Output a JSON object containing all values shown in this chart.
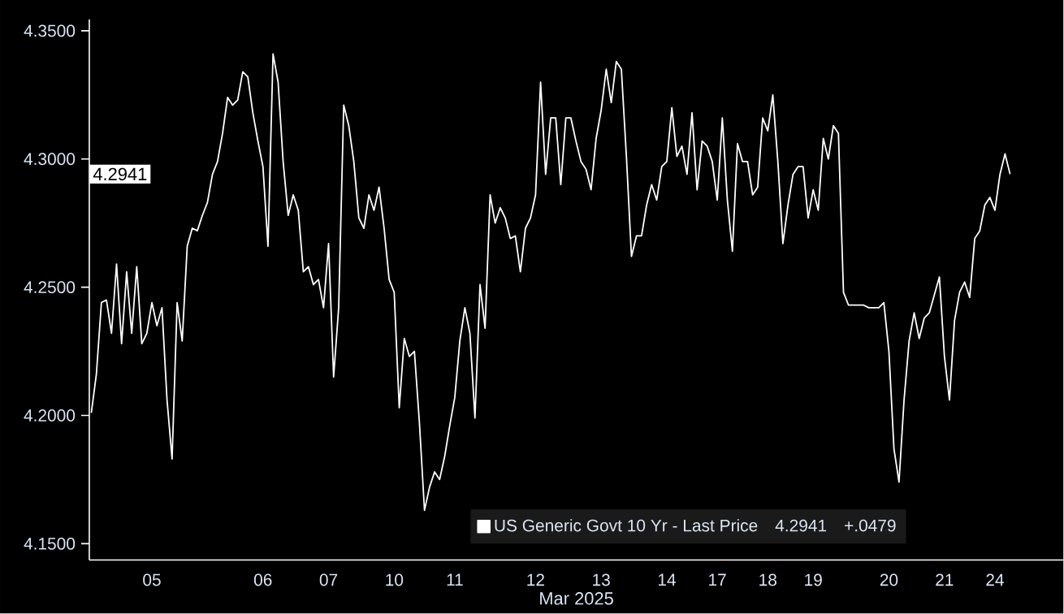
{
  "chart_data": {
    "type": "line",
    "xlabel": "Mar 2025",
    "categories": [
      null,
      null,
      null,
      null,
      null,
      null,
      null,
      null,
      null,
      null,
      null,
      null,
      "05",
      null,
      null,
      null,
      null,
      null,
      null,
      null,
      null,
      null,
      null,
      null,
      null,
      null,
      null,
      null,
      null,
      null,
      null,
      null,
      null,
      null,
      "06",
      null,
      null,
      null,
      null,
      null,
      null,
      null,
      null,
      null,
      null,
      null,
      null,
      "07",
      null,
      null,
      null,
      null,
      null,
      null,
      null,
      null,
      null,
      null,
      null,
      null,
      "10",
      null,
      null,
      null,
      null,
      null,
      null,
      null,
      null,
      null,
      null,
      null,
      "11",
      null,
      null,
      null,
      null,
      null,
      null,
      null,
      null,
      null,
      null,
      null,
      null,
      null,
      null,
      null,
      "12",
      null,
      null,
      null,
      null,
      null,
      null,
      null,
      null,
      null,
      null,
      null,
      null,
      "13",
      null,
      null,
      null,
      null,
      null,
      null,
      null,
      null,
      null,
      null,
      null,
      null,
      "14",
      null,
      null,
      null,
      null,
      null,
      null,
      null,
      null,
      null,
      "17",
      null,
      null,
      null,
      null,
      null,
      null,
      null,
      null,
      null,
      "18",
      null,
      null,
      null,
      null,
      null,
      null,
      null,
      null,
      "19",
      null,
      null,
      null,
      null,
      null,
      null,
      null,
      null,
      null,
      null,
      null,
      null,
      null,
      null,
      "20",
      null,
      null,
      null,
      null,
      null,
      null,
      null,
      null,
      null,
      null,
      "21",
      null,
      null,
      null,
      null,
      null,
      null,
      null,
      null,
      null,
      "24",
      null,
      null,
      null
    ],
    "ylim": [
      4.1436,
      4.3544
    ],
    "yticks": [
      {
        "value": 4.15,
        "label": "4.1500"
      },
      {
        "value": 4.2,
        "label": "4.2000"
      },
      {
        "value": 4.25,
        "label": "4.2500"
      },
      {
        "value": 4.3,
        "label": "4.3000"
      },
      {
        "value": 4.35,
        "label": "4.3500"
      }
    ],
    "legend": "bottom",
    "marker": "none",
    "line_style": "solid",
    "annotations": [
      {
        "text": "4.2941",
        "y": 4.2941
      },
      "4.2941",
      "+.0479"
    ],
    "series": [
      {
        "name": "US Generic Govt 10 Yr - Last Price",
        "color": "#ffffff",
        "values": [
          4.201,
          4.216,
          4.244,
          4.245,
          4.232,
          4.259,
          4.228,
          4.256,
          4.232,
          4.258,
          4.228,
          4.232,
          4.244,
          4.235,
          4.242,
          4.206,
          4.183,
          4.244,
          4.229,
          4.266,
          4.273,
          4.272,
          4.278,
          4.283,
          4.294,
          4.299,
          4.31,
          4.324,
          4.321,
          4.323,
          4.334,
          4.332,
          4.318,
          4.307,
          4.297,
          4.266,
          4.341,
          4.33,
          4.299,
          4.278,
          4.286,
          4.28,
          4.256,
          4.258,
          4.251,
          4.253,
          4.242,
          4.267,
          4.215,
          4.242,
          4.321,
          4.313,
          4.299,
          4.277,
          4.273,
          4.286,
          4.28,
          4.289,
          4.273,
          4.253,
          4.248,
          4.203,
          4.23,
          4.223,
          4.225,
          4.197,
          4.163,
          4.172,
          4.178,
          4.175,
          4.184,
          4.196,
          4.207,
          4.229,
          4.242,
          4.232,
          4.199,
          4.251,
          4.234,
          4.286,
          4.275,
          4.281,
          4.277,
          4.269,
          4.27,
          4.256,
          4.273,
          4.277,
          4.286,
          4.33,
          4.294,
          4.316,
          4.316,
          4.29,
          4.316,
          4.316,
          4.307,
          4.299,
          4.296,
          4.288,
          4.308,
          4.319,
          4.335,
          4.322,
          4.338,
          4.335,
          4.301,
          4.262,
          4.27,
          4.27,
          4.282,
          4.29,
          4.284,
          4.297,
          4.299,
          4.32,
          4.301,
          4.305,
          4.294,
          4.318,
          4.288,
          4.307,
          4.305,
          4.299,
          4.284,
          4.316,
          4.284,
          4.264,
          4.306,
          4.299,
          4.299,
          4.286,
          4.289,
          4.316,
          4.311,
          4.325,
          4.299,
          4.267,
          4.282,
          4.294,
          4.297,
          4.297,
          4.277,
          4.288,
          4.28,
          4.308,
          4.3,
          4.313,
          4.31,
          4.248,
          4.243,
          4.243,
          4.243,
          4.243,
          4.242,
          4.242,
          4.242,
          4.244,
          4.225,
          4.187,
          4.174,
          4.206,
          4.229,
          4.24,
          4.23,
          4.238,
          4.24,
          4.247,
          4.254,
          4.223,
          4.206,
          4.237,
          4.248,
          4.252,
          4.246,
          4.269,
          4.272,
          4.282,
          4.285,
          4.28,
          4.294,
          4.302,
          4.2941
        ]
      }
    ]
  }
}
